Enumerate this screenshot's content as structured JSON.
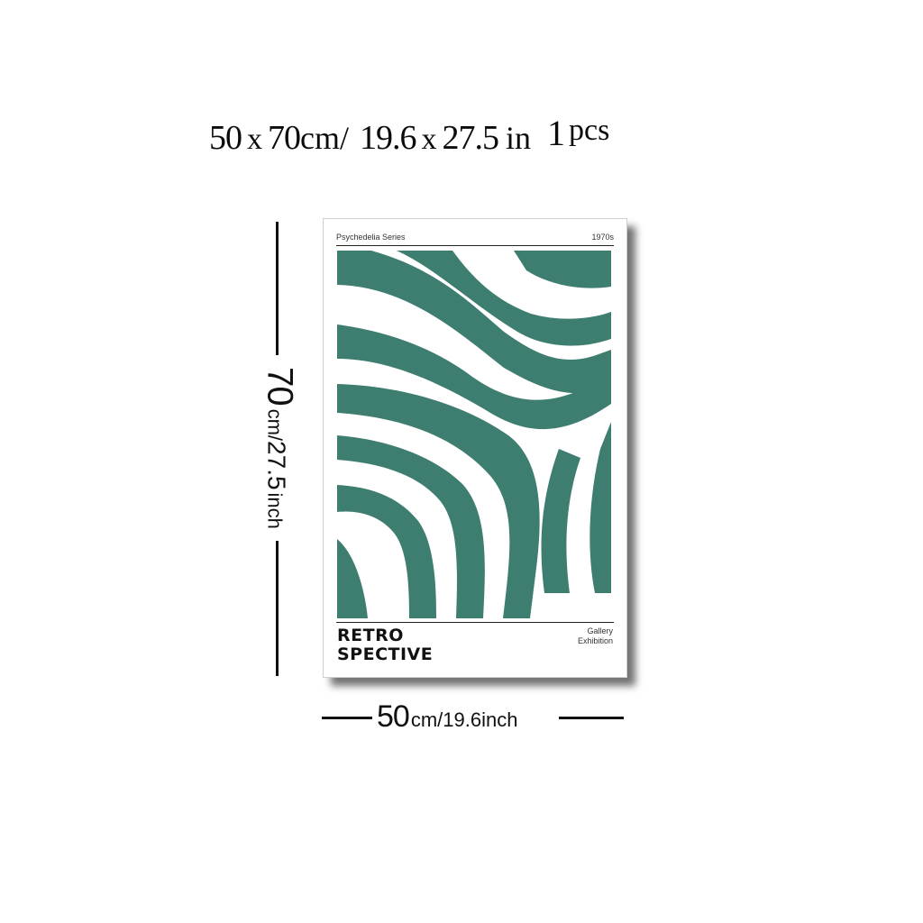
{
  "headline": {
    "w": "50",
    "x1": "x",
    "h": "70",
    "unit_cm": "cm/",
    "w_in": "19.6",
    "x2": "x",
    "h_in": "27.5",
    "unit_in": "in",
    "qty": "1",
    "qty_unit": "pcs"
  },
  "height_dim": {
    "value": "70",
    "unit_cm": "cm/",
    "value_in": "27.5",
    "unit_in": "inch"
  },
  "width_dim": {
    "value": "50",
    "rest": "cm/19.6inch"
  },
  "poster": {
    "series": "Psychedelia Series",
    "year": "1970s",
    "title_line1": "RETRO",
    "title_line2": "SPECTIVE",
    "caption_line1": "Gallery",
    "caption_line2": "Exhibition",
    "accent_color": "#3e7e70"
  }
}
